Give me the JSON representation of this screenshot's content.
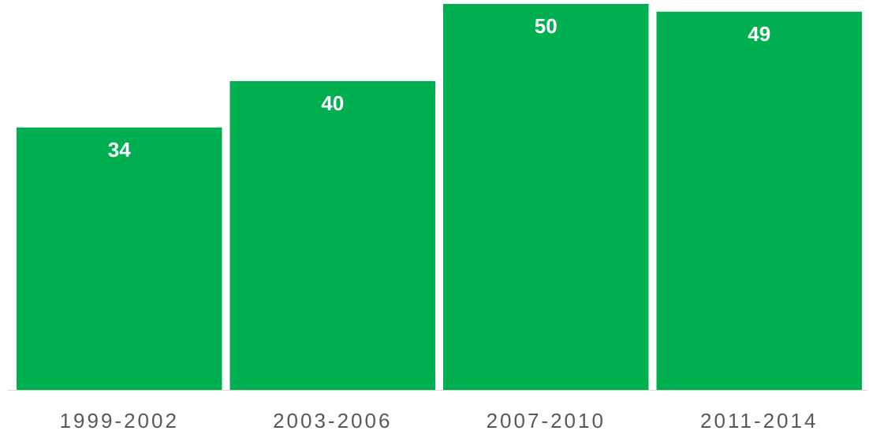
{
  "chart_data": {
    "type": "bar",
    "categories": [
      "1999-2002",
      "2003-2006",
      "2007-2010",
      "2011-2014"
    ],
    "values": [
      34,
      40,
      50,
      49
    ],
    "value_labels": [
      "34",
      "40",
      "50",
      "49"
    ],
    "title": "",
    "xlabel": "",
    "ylabel": "",
    "ylim": [
      0,
      50
    ],
    "grid": false,
    "legend": "none",
    "colors": {
      "bar": "#00B050",
      "value_label": "#FFFFFF",
      "tick_label": "#595959",
      "baseline": "#D9D9D9"
    }
  }
}
